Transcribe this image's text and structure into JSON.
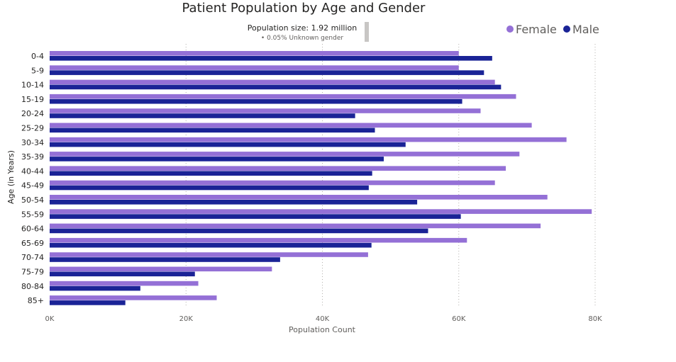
{
  "chart_data": {
    "type": "bar",
    "orientation": "horizontal",
    "title": "Patient Population by Age and Gender",
    "annotation": {
      "line1": "Population size: 1.92 million",
      "line2": "• 0.05% Unknown gender"
    },
    "xlabel": "Population Count",
    "ylabel": "Age (in Years)",
    "xlim": [
      0,
      80000
    ],
    "xticks": [
      0,
      20000,
      40000,
      60000,
      80000
    ],
    "xtick_labels": [
      "0K",
      "20K",
      "40K",
      "60K",
      "80K"
    ],
    "grid": true,
    "legend_position": "top-right",
    "categories": [
      "0-4",
      "5-9",
      "10-14",
      "15-19",
      "20-24",
      "25-29",
      "30-34",
      "35-39",
      "40-44",
      "45-49",
      "50-54",
      "55-59",
      "60-64",
      "65-69",
      "70-74",
      "75-79",
      "80-84",
      "85+"
    ],
    "series": [
      {
        "name": "Female",
        "color": "#9470d6",
        "values": [
          60000,
          60000,
          65300,
          68400,
          63200,
          70700,
          75800,
          68900,
          66900,
          65300,
          73000,
          79500,
          72000,
          61200,
          46700,
          32600,
          21800,
          24500
        ]
      },
      {
        "name": "Male",
        "color": "#1a2396",
        "values": [
          64900,
          63700,
          66200,
          60500,
          44800,
          47700,
          52200,
          49000,
          47300,
          46800,
          53900,
          60300,
          55500,
          47200,
          33800,
          21300,
          13300,
          11100
        ]
      }
    ]
  }
}
